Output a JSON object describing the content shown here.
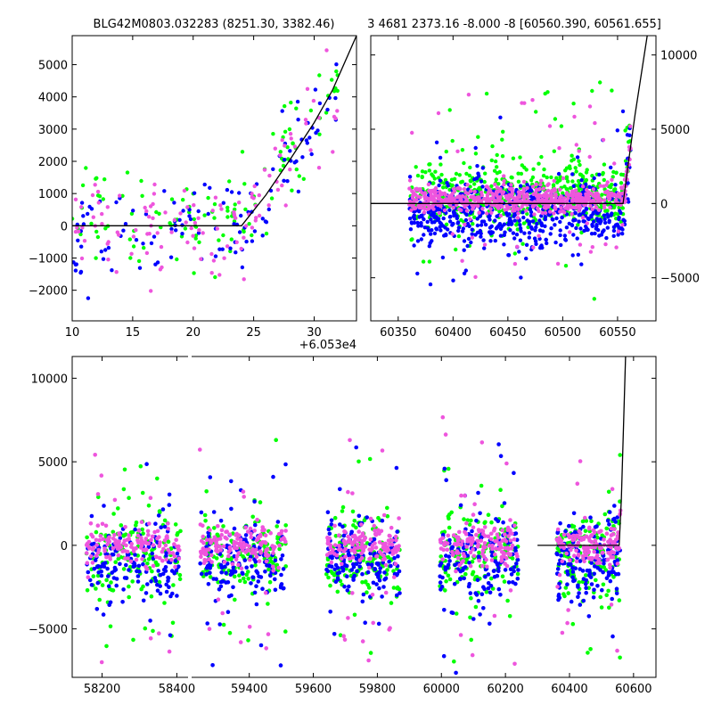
{
  "figure": {
    "title_left": "BLG42M0803.032283 (8251.30, 3382.46)",
    "title_right": "3 4681 2373.16 -8.000 -8 [60560.390, 60561.655]"
  },
  "colors": {
    "green": "#00ff00",
    "blue": "#0000ff",
    "pink": "#ee55dd",
    "model_line": "#000000"
  },
  "chart_data": [
    {
      "id": "zoom-left",
      "type": "scatter",
      "title": "BLG42M0803.032283 (8251.30, 3382.46)",
      "xlim": [
        10,
        33.5
      ],
      "ylim": [
        -2950,
        5900
      ],
      "x_offset_label": "+6.053e4",
      "xticks": [
        10,
        15,
        20,
        25,
        30
      ],
      "yticks": [
        -2000,
        -1000,
        0,
        1000,
        2000,
        3000,
        4000,
        5000
      ],
      "ytick_side": "left",
      "baseline_level": 0,
      "model_curve": [
        [
          10,
          0
        ],
        [
          24,
          0
        ],
        [
          26,
          950
        ],
        [
          28,
          2050
        ],
        [
          30,
          3200
        ],
        [
          31.5,
          4200
        ],
        [
          33.5,
          5900
        ]
      ],
      "point_model": {
        "x_start": 10,
        "x_end": 32,
        "rise_start": 24,
        "n_per_series": 120,
        "noise": 700
      },
      "series": [
        {
          "color": "green"
        },
        {
          "color": "blue"
        },
        {
          "color": "pink"
        }
      ]
    },
    {
      "id": "zoom-right",
      "type": "scatter",
      "title": "3 4681 2373.16 -8.000 -8 [60560.390, 60561.655]",
      "xlim": [
        60325,
        60585
      ],
      "ylim": [
        -7900,
        11300
      ],
      "xticks": [
        60350,
        60400,
        60450,
        60500,
        60550
      ],
      "yticks": [
        -5000,
        0,
        5000,
        10000
      ],
      "ytick_side": "right",
      "baseline_level": 0,
      "model_curve": [
        [
          60325,
          0
        ],
        [
          60555,
          0
        ],
        [
          60560,
          2800
        ],
        [
          60566,
          6000
        ],
        [
          60577,
          11300
        ]
      ],
      "point_model": {
        "x_start": 60360,
        "x_end": 60562,
        "n_per_series": 600,
        "noise": 1100
      },
      "series": [
        {
          "color": "green"
        },
        {
          "color": "blue"
        },
        {
          "color": "pink"
        }
      ]
    },
    {
      "id": "full-lightcurve",
      "type": "scatter",
      "xlim": [
        58120,
        60670
      ],
      "ylim": [
        -7900,
        11300
      ],
      "xticks": [
        58200,
        58400,
        59400,
        59600,
        59800,
        60000,
        60200,
        60400,
        60600
      ],
      "yticks": [
        -5000,
        0,
        5000,
        10000
      ],
      "ytick_side": "left",
      "axis_break": [
        58430,
        59220
      ],
      "seasons": [
        [
          58155,
          58410
        ],
        [
          59245,
          59515
        ],
        [
          59640,
          59870
        ],
        [
          59995,
          60240
        ],
        [
          60360,
          60560
        ]
      ],
      "model_curve": [
        [
          60300,
          0
        ],
        [
          60555,
          0
        ],
        [
          60562,
          2800
        ],
        [
          60575,
          11300
        ]
      ],
      "point_model": {
        "n_per_season": 450,
        "noise": 1200
      },
      "series": [
        {
          "color": "green"
        },
        {
          "color": "blue"
        },
        {
          "color": "pink"
        }
      ]
    }
  ]
}
